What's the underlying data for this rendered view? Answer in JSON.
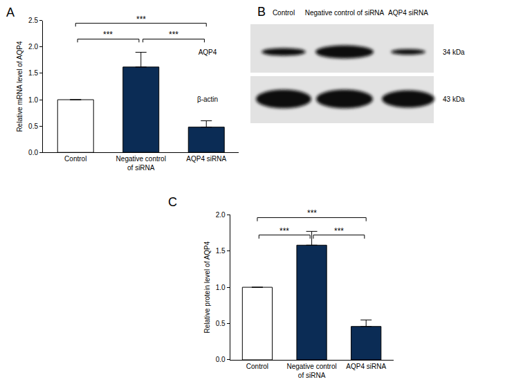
{
  "chart_data": [
    {
      "panel": "A",
      "type": "bar",
      "categories": [
        "Control",
        "Negative control\nof siRNA",
        "AQP4 siRNA"
      ],
      "values": [
        1.0,
        1.62,
        0.48
      ],
      "errors": [
        0,
        0.28,
        0.12
      ],
      "colors": [
        "#ffffff",
        "#0b2c55",
        "#0b2c55"
      ],
      "y_label": "Relative mRNA level of AQP4",
      "ylim": [
        0,
        2.5
      ],
      "yticks": [
        {
          "value": 0,
          "label": "0.0"
        },
        {
          "value": 0.5,
          "label": "0.5"
        },
        {
          "value": 1,
          "label": "1.0"
        },
        {
          "value": 1.5,
          "label": "1.5"
        },
        {
          "value": 2,
          "label": "2.0"
        },
        {
          "value": 2.5,
          "label": "2.5"
        }
      ],
      "comparisons": [
        {
          "from": 0,
          "to": 1,
          "label": "***"
        },
        {
          "from": 1,
          "to": 2,
          "label": "***"
        },
        {
          "from": 0,
          "to": 2,
          "label": "***"
        }
      ]
    },
    {
      "panel": "C",
      "type": "bar",
      "categories": [
        "Control",
        "Negative control\nof siRNA",
        "AQP4 siRNA"
      ],
      "values": [
        1.0,
        1.58,
        0.46
      ],
      "errors": [
        0,
        0.19,
        0.09
      ],
      "colors": [
        "#ffffff",
        "#0b2c55",
        "#0b2c55"
      ],
      "y_label": "Relative protein level of AQP4",
      "ylim": [
        0,
        2.0
      ],
      "yticks": [
        {
          "value": 0,
          "label": "0.0"
        },
        {
          "value": 0.5,
          "label": "0.5"
        },
        {
          "value": 1,
          "label": "1.0"
        },
        {
          "value": 1.5,
          "label": "1.5"
        },
        {
          "value": 2,
          "label": "2.0"
        }
      ],
      "comparisons": [
        {
          "from": 0,
          "to": 1,
          "label": "***"
        },
        {
          "from": 1,
          "to": 2,
          "label": "***"
        },
        {
          "from": 0,
          "to": 2,
          "label": "***"
        }
      ]
    }
  ],
  "blot": {
    "panel": "B",
    "lanes": [
      "Control",
      "Negative control of siRNA",
      "AQP4 siRNA"
    ],
    "rows": [
      {
        "label": "AQP4",
        "size": "34 kDa"
      },
      {
        "label": "β-actin",
        "size": "43 kDa"
      }
    ]
  }
}
